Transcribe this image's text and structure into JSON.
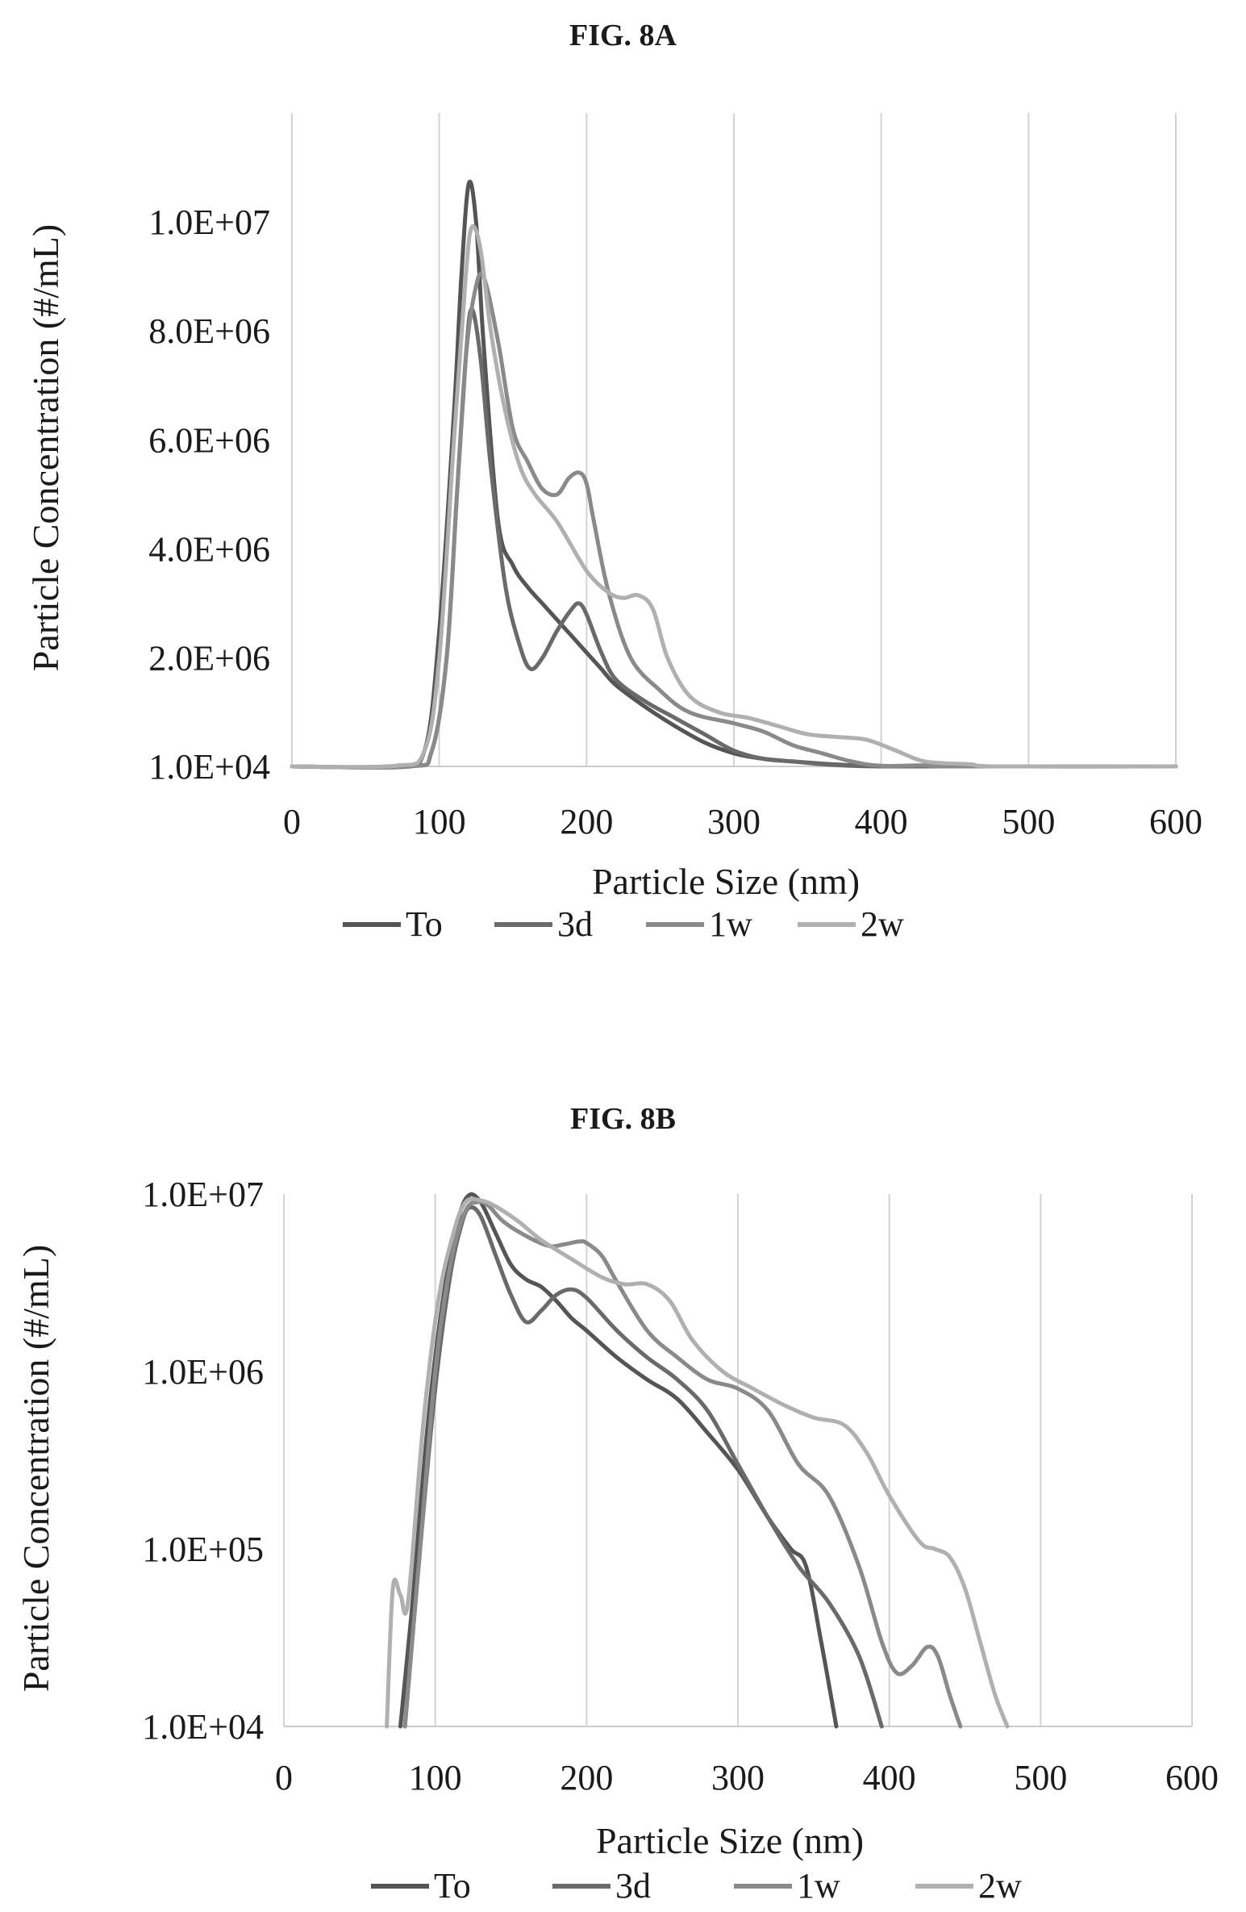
{
  "chart_data": [
    {
      "type": "line",
      "title": "FIG. 8A",
      "xlabel": "Particle Size (nm)",
      "ylabel": "Particle Concentration (#/mL)",
      "xlim": [
        0,
        600
      ],
      "x_ticks": [
        0,
        100,
        200,
        300,
        400,
        500,
        600
      ],
      "x_tick_labels": [
        "0",
        "100",
        "200",
        "300",
        "400",
        "500",
        "600"
      ],
      "y_scale": "linear",
      "ylim": [
        10000,
        12000000
      ],
      "y_ticks": [
        10000,
        2000000,
        4000000,
        6000000,
        8000000,
        10000000
      ],
      "y_tick_labels": [
        "1.0E+04",
        "2.0E+06",
        "4.0E+06",
        "6.0E+06",
        "8.0E+06",
        "1.0E+07"
      ],
      "grid": "vertical",
      "legend": "bottom",
      "series": [
        {
          "name": "To",
          "color": "#555555",
          "x": [
            0,
            70,
            90,
            100,
            110,
            115,
            120,
            125,
            130,
            140,
            150,
            160,
            170,
            180,
            190,
            200,
            210,
            220,
            240,
            260,
            280,
            300,
            320,
            340,
            360,
            380,
            400,
            420,
            450,
            600
          ],
          "y": [
            10000,
            20000,
            300000,
            2500000,
            6500000,
            9000000,
            10700000,
            10000000,
            7800000,
            4500000,
            3700000,
            3300000,
            3000000,
            2700000,
            2400000,
            2100000,
            1800000,
            1500000,
            1100000,
            750000,
            450000,
            250000,
            150000,
            100000,
            60000,
            30000,
            15000,
            10000,
            10000,
            10000
          ]
        },
        {
          "name": "3d",
          "color": "#6a6a6a",
          "x": [
            0,
            80,
            95,
            105,
            112,
            118,
            122,
            128,
            135,
            145,
            155,
            162,
            170,
            180,
            190,
            195,
            200,
            210,
            220,
            240,
            260,
            280,
            300,
            320,
            340,
            360,
            380,
            400,
            450,
            600
          ],
          "y": [
            10000,
            10000,
            300000,
            2000000,
            5000000,
            7500000,
            8400000,
            7500000,
            5500000,
            3300000,
            2200000,
            1800000,
            2000000,
            2500000,
            2900000,
            3000000,
            2800000,
            2100000,
            1600000,
            1200000,
            900000,
            600000,
            300000,
            150000,
            100000,
            50000,
            20000,
            10000,
            10000,
            10000
          ]
        },
        {
          "name": "1w",
          "color": "#8a8a8a",
          "x": [
            0,
            80,
            95,
            105,
            112,
            118,
            124,
            130,
            140,
            150,
            160,
            170,
            180,
            188,
            195,
            200,
            205,
            215,
            230,
            250,
            270,
            300,
            320,
            340,
            360,
            380,
            400,
            430,
            450,
            600
          ],
          "y": [
            10000,
            10000,
            300000,
            2000000,
            5000000,
            7500000,
            8700000,
            9000000,
            7800000,
            6200000,
            5600000,
            5100000,
            5000000,
            5300000,
            5400000,
            5200000,
            4500000,
            3200000,
            2000000,
            1400000,
            1000000,
            800000,
            650000,
            400000,
            250000,
            100000,
            20000,
            30000,
            10000,
            10000
          ]
        },
        {
          "name": "2w",
          "color": "#b0b0b0",
          "x": [
            0,
            70,
            90,
            100,
            110,
            118,
            122,
            128,
            135,
            145,
            155,
            165,
            180,
            200,
            215,
            225,
            235,
            245,
            255,
            270,
            290,
            310,
            330,
            350,
            370,
            390,
            410,
            430,
            460,
            480,
            600
          ],
          "y": [
            10000,
            20000,
            300000,
            2000000,
            6000000,
            9000000,
            9900000,
            9500000,
            8000000,
            6500000,
            5500000,
            5000000,
            4500000,
            3600000,
            3200000,
            3100000,
            3150000,
            2900000,
            2000000,
            1300000,
            1000000,
            900000,
            750000,
            600000,
            550000,
            500000,
            300000,
            100000,
            50000,
            10000,
            10000
          ]
        }
      ]
    },
    {
      "type": "line",
      "title": "FIG. 8B",
      "xlabel": "Particle Size (nm)",
      "ylabel": "Particle Concentration (#/mL)",
      "xlim": [
        0,
        600
      ],
      "x_ticks": [
        0,
        100,
        200,
        300,
        400,
        500,
        600
      ],
      "x_tick_labels": [
        "0",
        "100",
        "200",
        "300",
        "400",
        "500",
        "600"
      ],
      "y_scale": "log",
      "ylim": [
        10000,
        10000000
      ],
      "y_ticks": [
        10000,
        100000,
        1000000,
        10000000
      ],
      "y_tick_labels": [
        "1.0E+04",
        "1.0E+05",
        "1.0E+06",
        "1.0E+07"
      ],
      "grid": "vertical",
      "legend": "bottom",
      "series": [
        {
          "name": "To",
          "color": "#555555",
          "x": [
            77,
            85,
            95,
            105,
            115,
            122,
            130,
            140,
            150,
            160,
            170,
            180,
            190,
            200,
            220,
            240,
            260,
            280,
            300,
            320,
            335,
            345,
            355,
            365
          ],
          "y": [
            10000,
            50000,
            500000,
            2500000,
            7000000,
            9800000,
            9000000,
            6000000,
            4000000,
            3300000,
            3000000,
            2500000,
            2000000,
            1700000,
            1200000,
            900000,
            700000,
            450000,
            280000,
            150000,
            100000,
            80000,
            30000,
            10000
          ]
        },
        {
          "name": "3d",
          "color": "#6a6a6a",
          "x": [
            80,
            90,
            100,
            110,
            118,
            123,
            130,
            140,
            150,
            160,
            170,
            180,
            190,
            200,
            220,
            240,
            260,
            280,
            300,
            320,
            340,
            360,
            380,
            395
          ],
          "y": [
            10000,
            100000,
            800000,
            3500000,
            7000000,
            8400000,
            7500000,
            4500000,
            2700000,
            1900000,
            2200000,
            2700000,
            2900000,
            2600000,
            1700000,
            1200000,
            900000,
            600000,
            300000,
            150000,
            80000,
            50000,
            25000,
            10000
          ]
        },
        {
          "name": "1w",
          "color": "#8a8a8a",
          "x": [
            80,
            90,
            100,
            110,
            120,
            128,
            135,
            145,
            160,
            175,
            185,
            195,
            200,
            210,
            220,
            240,
            260,
            280,
            300,
            320,
            340,
            360,
            380,
            395,
            405,
            415,
            425,
            432,
            440,
            447
          ],
          "y": [
            10000,
            100000,
            1000000,
            4000000,
            8000000,
            9000000,
            8600000,
            7000000,
            5800000,
            5100000,
            5200000,
            5400000,
            5300000,
            4500000,
            3200000,
            1700000,
            1200000,
            900000,
            800000,
            600000,
            300000,
            200000,
            80000,
            30000,
            20000,
            22000,
            28000,
            25000,
            15000,
            10000
          ]
        },
        {
          "name": "2w",
          "color": "#b0b0b0",
          "x": [
            68,
            72,
            77,
            82,
            92,
            102,
            112,
            120,
            130,
            140,
            155,
            170,
            190,
            210,
            225,
            240,
            255,
            270,
            290,
            310,
            330,
            350,
            370,
            385,
            400,
            420,
            430,
            440,
            450,
            460,
            470,
            478
          ],
          "y": [
            10000,
            60000,
            55000,
            50000,
            500000,
            2500000,
            6000000,
            9000000,
            9200000,
            8500000,
            7000000,
            5500000,
            4300000,
            3400000,
            3100000,
            3100000,
            2500000,
            1500000,
            1000000,
            800000,
            650000,
            550000,
            500000,
            350000,
            200000,
            110000,
            100000,
            90000,
            60000,
            30000,
            15000,
            10000
          ]
        }
      ]
    }
  ],
  "legend_dash": "—"
}
